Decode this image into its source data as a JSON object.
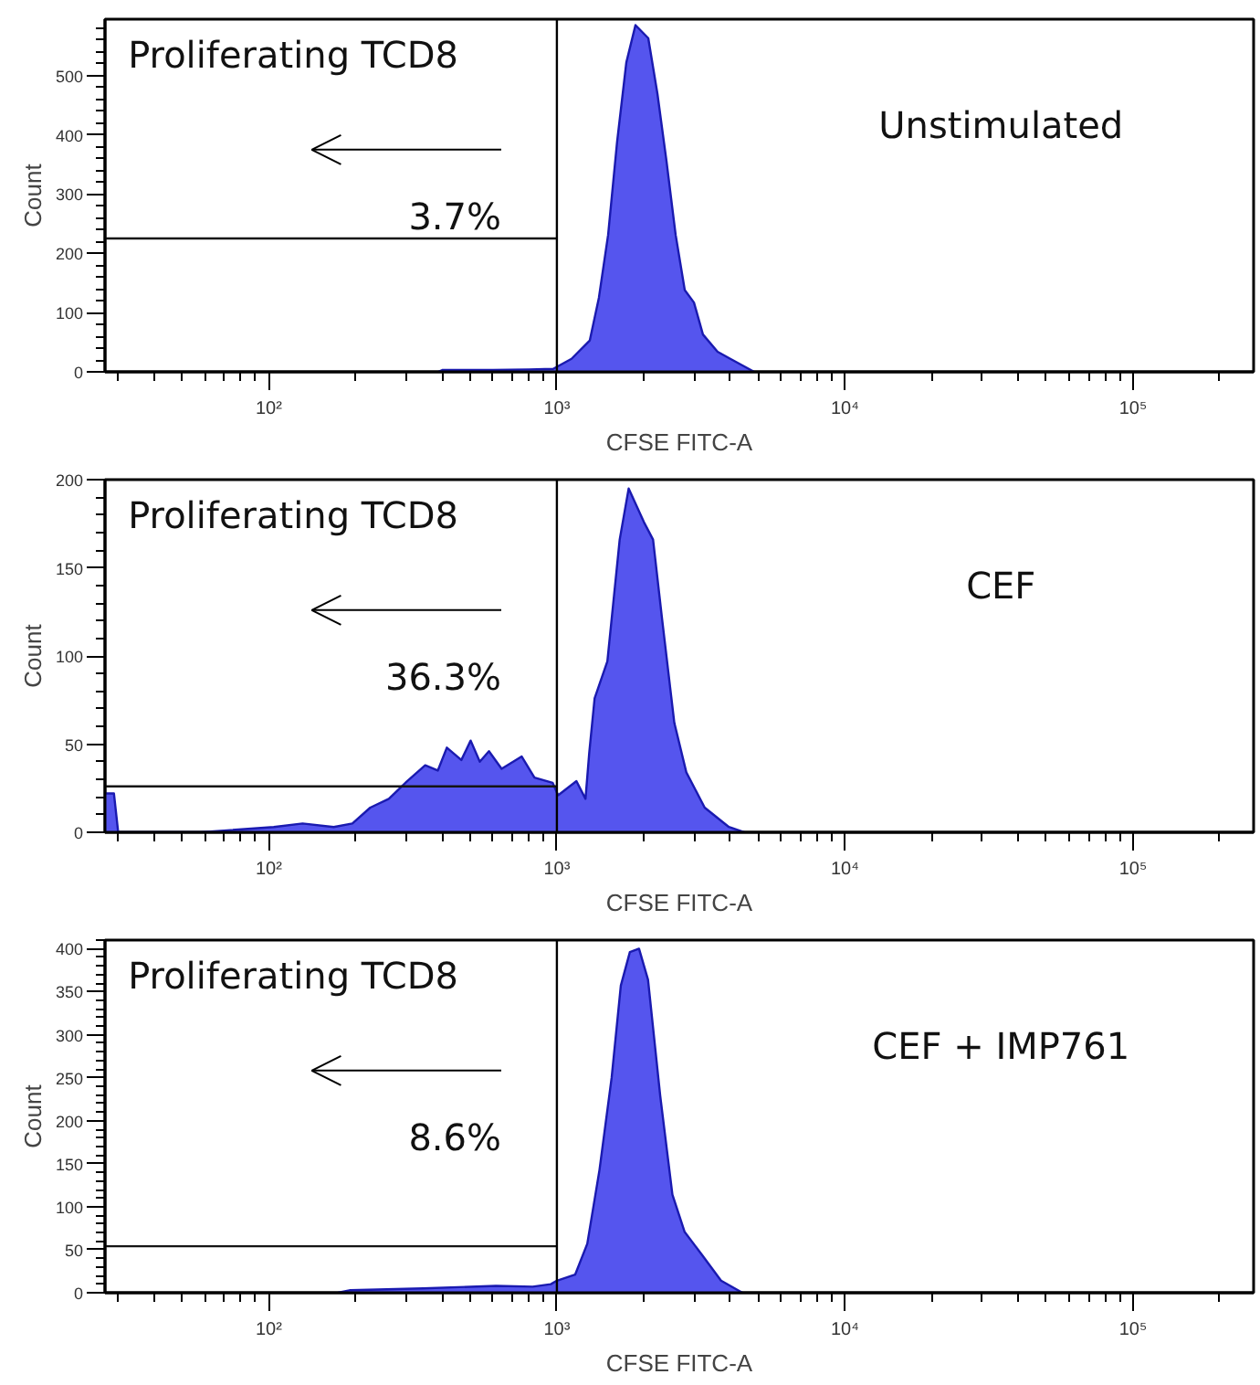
{
  "chart_data": [
    {
      "type": "area",
      "xlabel": "CFSE FITC-A",
      "ylabel": "Count",
      "log": "x",
      "grid": false,
      "xlim": [
        27,
        262144
      ],
      "xticks": [
        {
          "value": 100,
          "label": "10²"
        },
        {
          "value": 1000,
          "label": "10³"
        },
        {
          "value": 10000,
          "label": "10⁴"
        },
        {
          "value": 100000,
          "label": "10⁵"
        }
      ],
      "ylim": [
        0,
        595
      ],
      "yticks": [
        0,
        100,
        200,
        300,
        400,
        500
      ],
      "annotations": [
        "Proliferating TCD8",
        "3.7%",
        "Unstimulated"
      ],
      "ref_lines": [
        {
          "axis": "x",
          "value": 1000,
          "color": "#000000"
        }
      ],
      "series": [
        {
          "color": "#5555ee",
          "x": [
            387,
            400,
            600,
            800,
            971,
            1124,
            1301,
            1399,
            1506,
            1618,
            1742,
            1874,
            2076,
            2234,
            2401,
            2584,
            2779,
            2991,
            3214,
            3612,
            4000,
            4842
          ],
          "values": [
            0,
            3,
            3,
            4,
            5,
            22,
            53,
            125,
            231,
            388,
            522,
            585,
            563,
            469,
            356,
            231,
            138,
            117,
            63,
            34,
            22,
            0
          ]
        },
        {
          "type": "line",
          "color": "#141414",
          "x": [
            27,
            1000
          ],
          "values": [
            225,
            225
          ]
        }
      ]
    },
    {
      "type": "area",
      "xlabel": "CFSE FITC-A",
      "ylabel": "Count",
      "log": "x",
      "grid": false,
      "xlim": [
        27,
        262144
      ],
      "xticks": [
        {
          "value": 100,
          "label": "10²"
        },
        {
          "value": 1000,
          "label": "10³"
        },
        {
          "value": 10000,
          "label": "10⁴"
        },
        {
          "value": 100000,
          "label": "10⁵"
        }
      ],
      "ylim": [
        0,
        200
      ],
      "yticks": [
        0,
        50,
        100,
        150,
        200
      ],
      "annotations": [
        "Proliferating TCD8",
        "36.3%",
        "CEF"
      ],
      "ref_lines": [
        {
          "axis": "x",
          "value": 1000,
          "color": "#000000"
        }
      ],
      "series": [
        {
          "color": "#5555ee",
          "x": [
            27,
            29,
            30,
            58,
            104,
            131,
            168,
            195,
            225,
            261,
            302,
            349,
            386,
            415,
            466,
            502,
            540,
            581,
            643,
            755,
            836,
            967,
            1010,
            1169,
            1257,
            1295,
            1352,
            1497,
            1652,
            1775,
            2004,
            2157,
            2318,
            2557,
            2814,
            3259,
            3955,
            4467
          ],
          "values": [
            22,
            22,
            0,
            0,
            3,
            5,
            3,
            5,
            14,
            19,
            29,
            38,
            35,
            48,
            41,
            52,
            40,
            46,
            36,
            43,
            31,
            28,
            21,
            29,
            19,
            45,
            76,
            97,
            166,
            195,
            176,
            166,
            121,
            62,
            34,
            14,
            3,
            0
          ]
        },
        {
          "type": "line",
          "color": "#141414",
          "x": [
            27,
            1000
          ],
          "values": [
            26,
            26
          ]
        }
      ]
    },
    {
      "type": "area",
      "xlabel": "CFSE FITC-A",
      "ylabel": "Count",
      "log": "x",
      "grid": false,
      "xlim": [
        27,
        262144
      ],
      "xticks": [
        {
          "value": 100,
          "label": "10²"
        },
        {
          "value": 1000,
          "label": "10³"
        },
        {
          "value": 10000,
          "label": "10⁴"
        },
        {
          "value": 100000,
          "label": "10⁵"
        }
      ],
      "ylim": [
        0,
        410
      ],
      "yticks": [
        0,
        50,
        100,
        150,
        200,
        250,
        300,
        350,
        400
      ],
      "annotations": [
        "Proliferating TCD8",
        "8.6%",
        "CEF + IMP761"
      ],
      "ref_lines": [
        {
          "axis": "x",
          "value": 1000,
          "color": "#000000"
        }
      ],
      "series": [
        {
          "color": "#5555ee",
          "x": [
            174,
            192,
            344,
            615,
            824,
            953,
            1000,
            1157,
            1275,
            1406,
            1549,
            1667,
            1792,
            1928,
            2072,
            2284,
            2518,
            2774,
            3206,
            3714,
            4406
          ],
          "values": [
            0,
            3,
            5,
            8,
            7,
            10,
            14,
            21,
            57,
            143,
            250,
            357,
            396,
            400,
            364,
            229,
            114,
            71,
            43,
            14,
            0
          ]
        },
        {
          "type": "line",
          "color": "#141414",
          "x": [
            27,
            1000
          ],
          "values": [
            54,
            54
          ]
        }
      ]
    }
  ]
}
